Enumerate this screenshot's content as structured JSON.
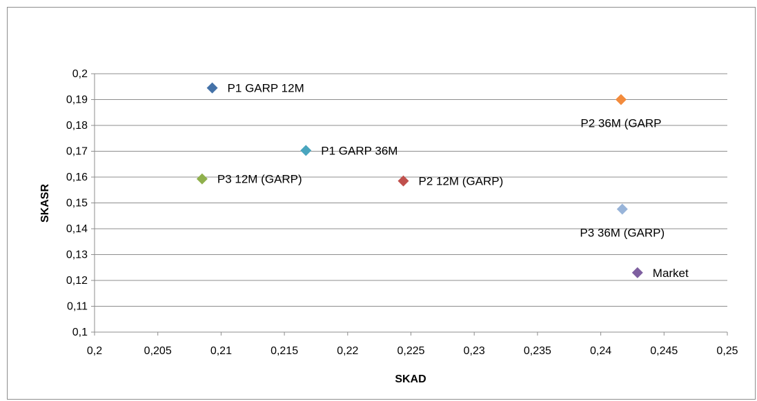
{
  "chart_data": {
    "type": "scatter",
    "title": "",
    "xlabel": "SKAD",
    "ylabel": "SKASR",
    "xlim": [
      0.2,
      0.25
    ],
    "ylim": [
      0.1,
      0.2
    ],
    "grid": "horizontal",
    "legend": "none",
    "x_ticks": [
      "0,2",
      "0,205",
      "0,21",
      "0,215",
      "0,22",
      "0,225",
      "0,23",
      "0,235",
      "0,24",
      "0,245",
      "0,25"
    ],
    "y_ticks": [
      "0,1",
      "0,11",
      "0,12",
      "0,13",
      "0,14",
      "0,15",
      "0,16",
      "0,17",
      "0,18",
      "0,19",
      "0,2"
    ],
    "points": [
      {
        "label": "P1 GARP 12M",
        "x": 0.2093,
        "y": 0.1945,
        "color": "#4472a8",
        "label_position": "right"
      },
      {
        "label": "P2 36M (GARP",
        "x": 0.2416,
        "y": 0.19,
        "color": "#f38b3c",
        "label_position": "below"
      },
      {
        "label": "P1 GARP 36M",
        "x": 0.2167,
        "y": 0.1703,
        "color": "#49a5be",
        "label_position": "right"
      },
      {
        "label": "P3 12M (GARP)",
        "x": 0.2085,
        "y": 0.1593,
        "color": "#8fb04c",
        "label_position": "right"
      },
      {
        "label": "P2 12M (GARP)",
        "x": 0.2244,
        "y": 0.1585,
        "color": "#c0504d",
        "label_position": "right"
      },
      {
        "label": "P3 36M (GARP)",
        "x": 0.2417,
        "y": 0.1476,
        "color": "#98b4d9",
        "label_position": "below"
      },
      {
        "label": "Market",
        "x": 0.2429,
        "y": 0.123,
        "color": "#7e5fa0",
        "label_position": "right"
      }
    ]
  }
}
